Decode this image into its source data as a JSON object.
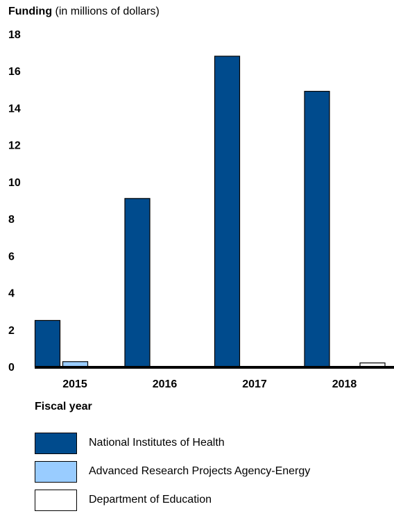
{
  "chart_data": {
    "type": "bar",
    "title": "",
    "ylabel_bold": "Funding",
    "ylabel_rest": "(in millions of dollars)",
    "xlabel": "Fiscal year",
    "categories": [
      "2015",
      "2016",
      "2017",
      "2018"
    ],
    "ylim": [
      0,
      18
    ],
    "yticks": [
      0,
      2,
      4,
      6,
      8,
      10,
      12,
      14,
      16,
      18
    ],
    "grid": false,
    "legend_position": "bottom",
    "series": [
      {
        "name": "National Institutes of Health",
        "color": "#004b8d",
        "values": [
          2.5,
          9.1,
          16.8,
          14.9
        ]
      },
      {
        "name": "Advanced Research Projects Agency-Energy",
        "color": "#99ccff",
        "values": [
          0.27,
          0,
          0,
          0
        ]
      },
      {
        "name": "Department of Education",
        "color": "#ffffff",
        "values": [
          0,
          0,
          0,
          0.2
        ]
      }
    ]
  }
}
